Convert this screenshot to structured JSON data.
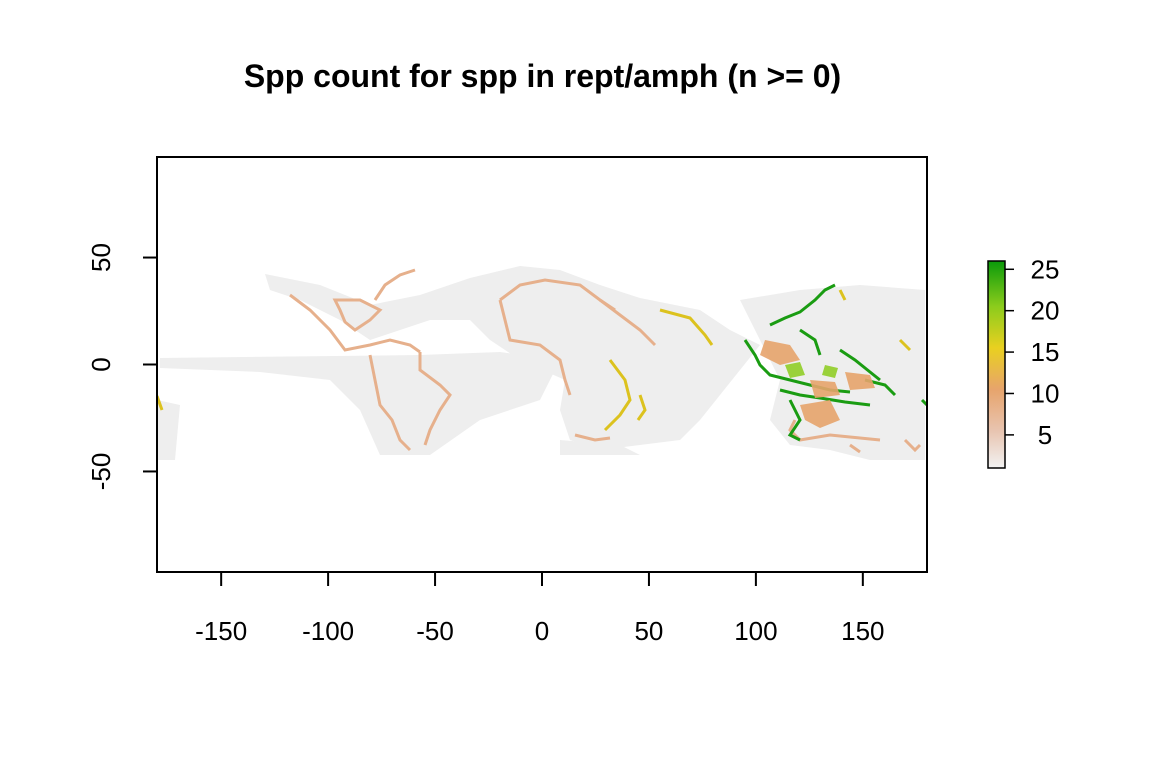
{
  "title": "Spp count for spp in rept/amph (n >= 0)",
  "chart_data": {
    "type": "heatmap",
    "title": "Spp count for spp in rept/amph (n >= 0)",
    "xlabel": "",
    "ylabel": "",
    "xlim": [
      -180,
      180
    ],
    "ylim": [
      -97,
      97
    ],
    "x_ticks": [
      -150,
      -100,
      -50,
      0,
      50,
      100,
      150
    ],
    "y_ticks": [
      -50,
      0,
      50
    ],
    "x_tick_labels": [
      "-150",
      "-100",
      "-50",
      "0",
      "50",
      "100",
      "150"
    ],
    "y_tick_labels": [
      "-50",
      "0",
      "50"
    ],
    "legend": {
      "position": "right",
      "range": [
        1,
        26
      ],
      "ticks": [
        5,
        10,
        15,
        20,
        25
      ],
      "tick_labels": [
        "5",
        "10",
        "15",
        "20",
        "25"
      ],
      "colors": [
        "#f2f2f2",
        "#e8c4b0",
        "#e7a46c",
        "#e9d020",
        "#8ccc1c",
        "#0a9a0a"
      ]
    },
    "colors": {
      "low": "#eeeeee",
      "coastal_low": "#e8b895",
      "mid": "#dcc21e",
      "high": "#1a9c12"
    }
  }
}
